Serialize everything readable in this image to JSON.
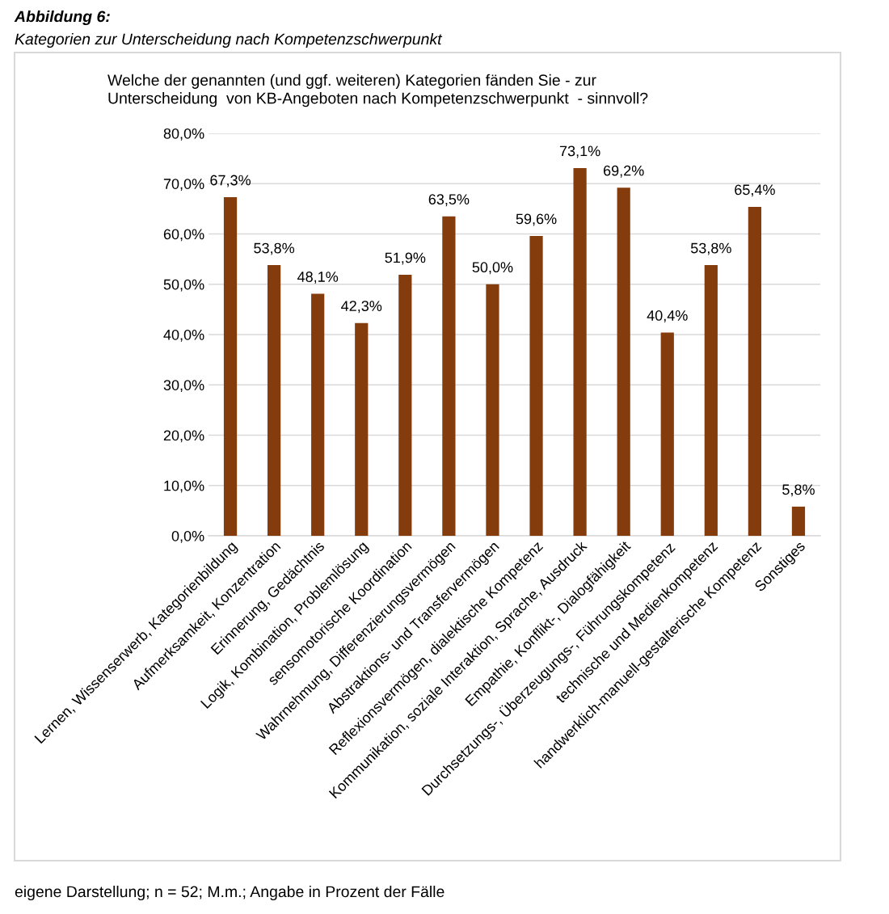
{
  "chart_data": {
    "type": "bar",
    "title": "Abbildung 6:",
    "subtitle": "Kategorien zur Unterscheidung nach Kompetenzschwerpunkt",
    "annotations": [
      "Welche der genannten (und ggf. weiteren) Kategorien fänden Sie - zur\nUnterscheidung  von KB-Angeboten nach Kompetenzschwerpunkt  - sinnvoll?",
      "eigene Darstellung; n = 52; M.m.; Angabe in Prozent der Fälle"
    ],
    "categories": [
      "Lernen, Wissenserwerb, Kategorienbildung",
      "Aufmerksamkeit, Konzentration",
      "Erinnerung, Gedächtnis",
      "Logik, Kombination, Problemlösung",
      "sensomotorische Koordination",
      "Wahrnehmung, Differenzierungsvermögen",
      "Abstraktions- und Transfervermögen",
      "Reflexionsvermögen, dialektische Kompetenz",
      "Kommunikation, soziale Interaktion, Sprache, Ausdruck",
      "Empathie, Konflikt-, Dialogfähigkeit",
      "Durchsetzungs-, Überzeugungs-, Führungskompetenz",
      "technische und Medienkompetenz",
      "handwerklich-manuell-gestalterische Kompetenz",
      "Sonstiges"
    ],
    "values": [
      67.3,
      53.8,
      48.1,
      42.3,
      51.9,
      63.5,
      50.0,
      59.6,
      73.1,
      69.2,
      40.4,
      53.8,
      65.4,
      5.8
    ],
    "value_labels": [
      "67,3%",
      "53,8%",
      "48,1%",
      "42,3%",
      "51,9%",
      "63,5%",
      "50,0%",
      "59,6%",
      "73,1%",
      "69,2%",
      "40,4%",
      "53,8%",
      "65,4%",
      "5,8%"
    ],
    "color": "#843c0c",
    "ylim": [
      0,
      80
    ],
    "yticks": [
      {
        "value": 0,
        "label": "0,0%"
      },
      {
        "value": 10,
        "label": "10,0%"
      },
      {
        "value": 20,
        "label": "20,0%"
      },
      {
        "value": 30,
        "label": "30,0%"
      },
      {
        "value": 40,
        "label": "40,0%"
      },
      {
        "value": 50,
        "label": "50,0%"
      },
      {
        "value": 60,
        "label": "60,0%"
      },
      {
        "value": 70,
        "label": "70,0%"
      },
      {
        "value": 80,
        "label": "80,0%"
      }
    ],
    "grid": "y",
    "legend": false
  }
}
